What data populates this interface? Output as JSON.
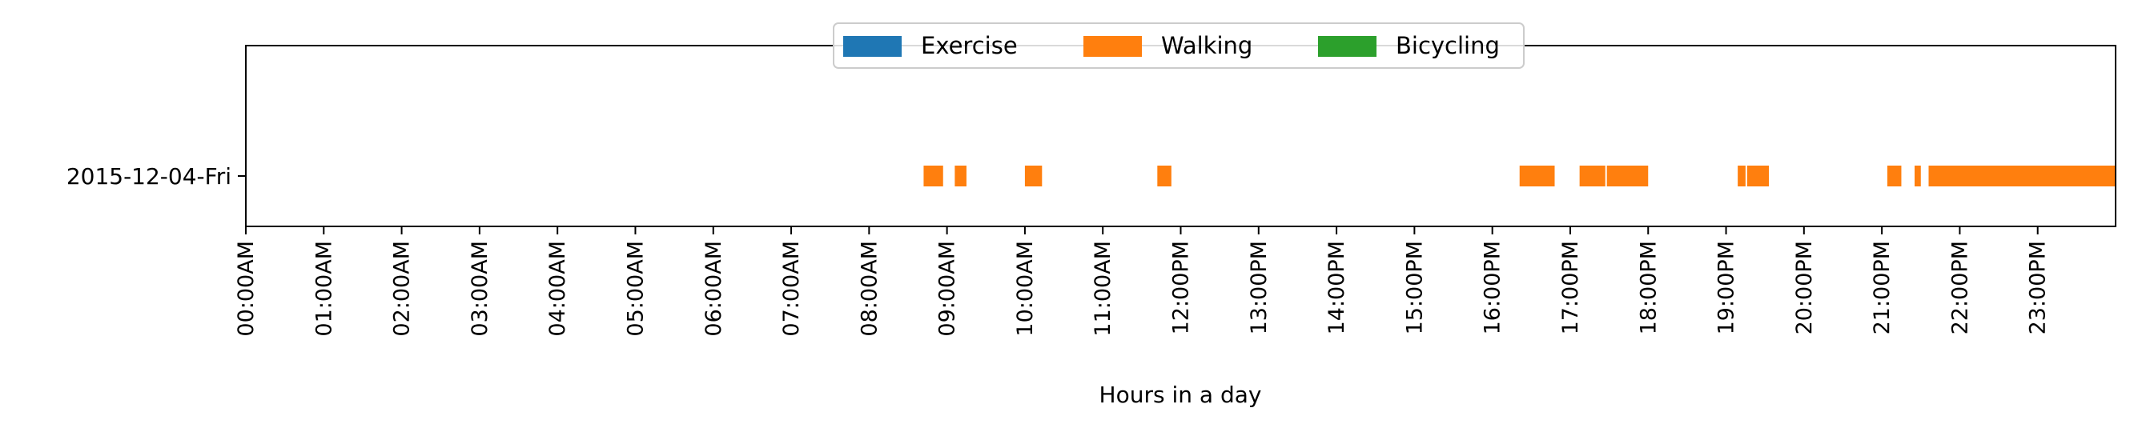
{
  "chart_data": {
    "type": "bar",
    "orientation": "horizontal-timeline",
    "title": "",
    "xlabel": "Hours in a day",
    "ylabel": "",
    "xlim": [
      0,
      24
    ],
    "grid": false,
    "legend_position": "top-center",
    "categories": [
      "2015-12-04-Fri"
    ],
    "x_tick_labels": [
      "00:00AM",
      "01:00AM",
      "02:00AM",
      "03:00AM",
      "04:00AM",
      "05:00AM",
      "06:00AM",
      "07:00AM",
      "08:00AM",
      "09:00AM",
      "10:00AM",
      "11:00AM",
      "12:00PM",
      "13:00PM",
      "14:00PM",
      "15:00PM",
      "16:00PM",
      "17:00PM",
      "18:00PM",
      "19:00PM",
      "20:00PM",
      "21:00PM",
      "22:00PM",
      "23:00PM"
    ],
    "series": [
      {
        "name": "Exercise",
        "color": "#1f77b4",
        "segments": []
      },
      {
        "name": "Walking",
        "color": "#ff7f0e",
        "segments": [
          {
            "category": "2015-12-04-Fri",
            "start": 8.7,
            "end": 8.95
          },
          {
            "category": "2015-12-04-Fri",
            "start": 9.1,
            "end": 9.25
          },
          {
            "category": "2015-12-04-Fri",
            "start": 10.0,
            "end": 10.22
          },
          {
            "category": "2015-12-04-Fri",
            "start": 11.7,
            "end": 11.88
          },
          {
            "category": "2015-12-04-Fri",
            "start": 16.35,
            "end": 16.8
          },
          {
            "category": "2015-12-04-Fri",
            "start": 17.12,
            "end": 17.45
          },
          {
            "category": "2015-12-04-Fri",
            "start": 17.47,
            "end": 18.0
          },
          {
            "category": "2015-12-04-Fri",
            "start": 19.15,
            "end": 19.25
          },
          {
            "category": "2015-12-04-Fri",
            "start": 19.27,
            "end": 19.55
          },
          {
            "category": "2015-12-04-Fri",
            "start": 21.07,
            "end": 21.25
          },
          {
            "category": "2015-12-04-Fri",
            "start": 21.42,
            "end": 21.5
          },
          {
            "category": "2015-12-04-Fri",
            "start": 21.6,
            "end": 24.0
          }
        ]
      },
      {
        "name": "Bicycling",
        "color": "#2ca02c",
        "segments": []
      }
    ]
  }
}
